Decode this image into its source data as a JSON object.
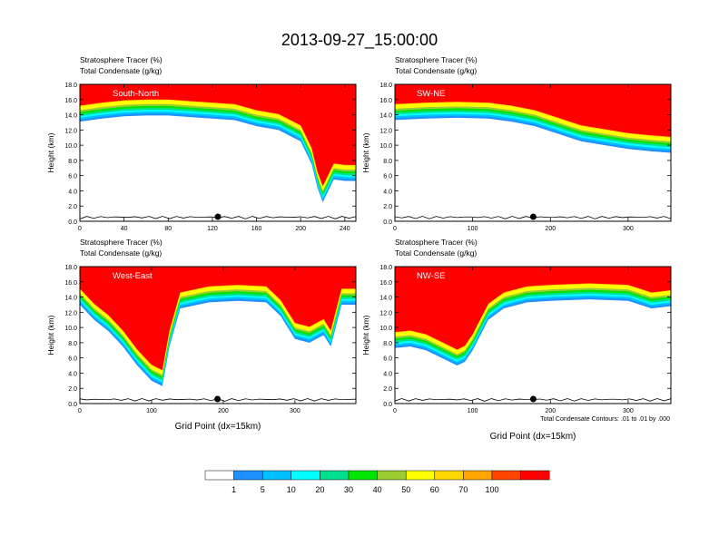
{
  "figure": {
    "title": "2013-09-27_15:00:00",
    "contour_note": "Total Condensate Contours: .01 to .01 by .000"
  },
  "colorbar": {
    "colors": [
      "#ffffff",
      "#1e90ff",
      "#00bfff",
      "#00ffff",
      "#00e08c",
      "#00e600",
      "#9acd32",
      "#ffff00",
      "#ffd700",
      "#ffa500",
      "#ff4500",
      "#ff0000"
    ],
    "labels": [
      "1",
      "5",
      "10",
      "20",
      "30",
      "40",
      "50",
      "60",
      "70",
      "100"
    ]
  },
  "chart_data": [
    {
      "type": "contour",
      "panel": "top-left",
      "name": "South-North",
      "title_line1": "Stratosphere Tracer   (%)",
      "title_line2": "Total Condensate   (g/kg)",
      "ylabel": "Height (km)",
      "xlabel": "",
      "xlim": [
        0,
        250
      ],
      "ylim": [
        0,
        18
      ],
      "xticks": [
        0,
        40,
        80,
        120,
        160,
        200,
        240
      ],
      "yticks": [
        0.0,
        2.0,
        4.0,
        6.0,
        8.0,
        10.0,
        12.0,
        14.0,
        16.0,
        18.0
      ],
      "marker_x": 125,
      "tropopause_x": [
        0,
        20,
        40,
        60,
        80,
        100,
        120,
        140,
        160,
        180,
        200,
        210,
        215,
        220,
        225,
        230,
        240,
        250
      ],
      "tropopause_y": [
        14.6,
        15.0,
        15.3,
        15.4,
        15.4,
        15.2,
        15.0,
        14.8,
        14.0,
        13.5,
        12.0,
        9.0,
        6.0,
        4.0,
        5.5,
        7.0,
        6.8,
        6.8
      ]
    },
    {
      "type": "contour",
      "panel": "top-right",
      "name": "SW-NE",
      "title_line1": "Stratosphere Tracer   (%)",
      "title_line2": "Total Condensate   (g/kg)",
      "ylabel": "Height (km)",
      "xlabel": "",
      "xlim": [
        0,
        355
      ],
      "ylim": [
        0,
        18
      ],
      "xticks": [
        0,
        100,
        200,
        300
      ],
      "yticks": [
        0.0,
        2.0,
        4.0,
        6.0,
        8.0,
        10.0,
        12.0,
        14.0,
        16.0,
        18.0
      ],
      "marker_x": 178,
      "tropopause_x": [
        0,
        40,
        80,
        120,
        150,
        180,
        210,
        240,
        270,
        300,
        330,
        355
      ],
      "tropopause_y": [
        14.8,
        15.0,
        15.1,
        15.0,
        14.6,
        14.0,
        13.0,
        12.0,
        11.5,
        11.0,
        10.7,
        10.5
      ]
    },
    {
      "type": "contour",
      "panel": "bottom-left",
      "name": "West-East",
      "title_line1": "Stratosphere Tracer   (%)",
      "title_line2": "Total Condensate   (g/kg)",
      "ylabel": "Height (km)",
      "xlabel": "Grid Point (dx=15km)",
      "xlim": [
        0,
        385
      ],
      "ylim": [
        0,
        18
      ],
      "xticks": [
        0,
        100,
        200,
        300
      ],
      "yticks": [
        0.0,
        2.0,
        4.0,
        6.0,
        8.0,
        10.0,
        12.0,
        14.0,
        16.0,
        18.0
      ],
      "marker_x": 192,
      "tropopause_x": [
        0,
        20,
        40,
        60,
        80,
        100,
        115,
        125,
        140,
        180,
        220,
        260,
        280,
        300,
        320,
        340,
        350,
        365,
        385
      ],
      "tropopause_y": [
        14.5,
        12.5,
        11.0,
        9.0,
        6.5,
        4.5,
        3.8,
        9.0,
        14.0,
        14.8,
        15.0,
        14.8,
        13.0,
        10.0,
        9.5,
        10.5,
        9.0,
        14.5,
        14.5
      ]
    },
    {
      "type": "contour",
      "panel": "bottom-right",
      "name": "NW-SE",
      "title_line1": "Stratosphere Tracer   (%)",
      "title_line2": "Total Condensate   (g/kg)",
      "ylabel": "Height (km)",
      "xlabel": "Grid Point (dx=15km)",
      "xlim": [
        0,
        355
      ],
      "ylim": [
        0,
        18
      ],
      "xticks": [
        0,
        100,
        200,
        300
      ],
      "yticks": [
        0.0,
        2.0,
        4.0,
        6.0,
        8.0,
        10.0,
        12.0,
        14.0,
        16.0,
        18.0
      ],
      "marker_x": 178,
      "tropopause_x": [
        0,
        20,
        40,
        60,
        80,
        90,
        100,
        110,
        120,
        140,
        170,
        200,
        250,
        300,
        330,
        355
      ],
      "tropopause_y": [
        8.8,
        9.0,
        8.5,
        7.5,
        6.5,
        7.0,
        8.5,
        10.5,
        12.5,
        14.0,
        14.8,
        15.0,
        15.2,
        15.0,
        14.0,
        14.3
      ]
    }
  ]
}
